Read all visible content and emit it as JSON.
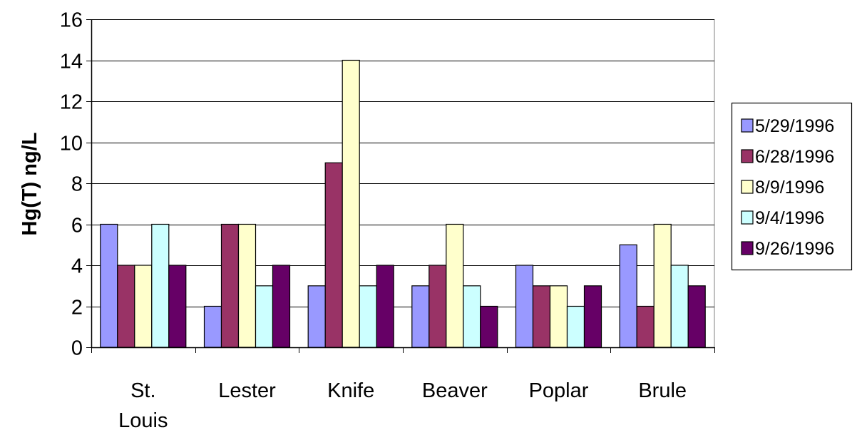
{
  "chart_data": {
    "type": "bar",
    "ylabel": "Hg(T) ng/L",
    "xlabel": "",
    "ylim": [
      0,
      16
    ],
    "yticks": [
      0,
      2,
      4,
      6,
      8,
      10,
      12,
      14,
      16
    ],
    "grid": true,
    "legend_position": "right",
    "categories": [
      [
        "St.",
        "Louis"
      ],
      [
        "Lester"
      ],
      [
        "Knife"
      ],
      [
        "Beaver"
      ],
      [
        "Poplar"
      ],
      [
        "Brule"
      ]
    ],
    "series": [
      {
        "name": "5/29/1996",
        "color": "#9999ff",
        "values": [
          6,
          2,
          3,
          3,
          4,
          5
        ]
      },
      {
        "name": "6/28/1996",
        "color": "#993366",
        "values": [
          4,
          6,
          9,
          4,
          3,
          2
        ]
      },
      {
        "name": "8/9/1996",
        "color": "#ffffcc",
        "values": [
          4,
          6,
          14,
          6,
          3,
          6
        ]
      },
      {
        "name": "9/4/1996",
        "color": "#ccffff",
        "values": [
          6,
          3,
          3,
          3,
          2,
          4
        ]
      },
      {
        "name": "9/26/1996",
        "color": "#660066",
        "values": [
          4,
          4,
          4,
          2,
          3,
          3
        ]
      }
    ]
  }
}
